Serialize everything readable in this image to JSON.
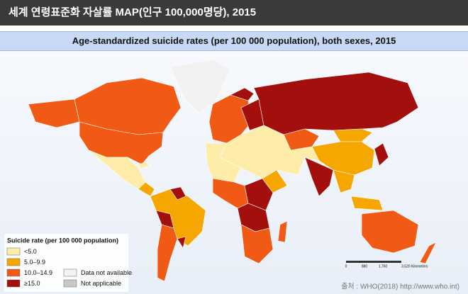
{
  "header": {
    "title": "세계 연령표준화 자살률 MAP(인구 100,000명당), 2015"
  },
  "map": {
    "subtitle": "Age-standardized suicide rates (per 100 000 population), both sexes, 2015",
    "legend": {
      "title": "Suicide rate (per 100 000 population)",
      "items": [
        {
          "label": "<5.0",
          "color": "#fdeda9"
        },
        {
          "label": "5.0–9.9",
          "color": "#f5a700"
        },
        {
          "label": "10.0–14.9",
          "color": "#f05a14"
        },
        {
          "label": "≥15.0",
          "color": "#a30f0c"
        },
        {
          "label": "Data not available",
          "color": "#f2f2f2"
        },
        {
          "label": "Not applicable",
          "color": "#c8c8c8"
        }
      ]
    },
    "scale_bar": {
      "labels": [
        "0",
        "880",
        "1,760",
        "3,520 Kilometers"
      ]
    },
    "source": "출처 : WHO(2018) http://www.who.int)"
  }
}
